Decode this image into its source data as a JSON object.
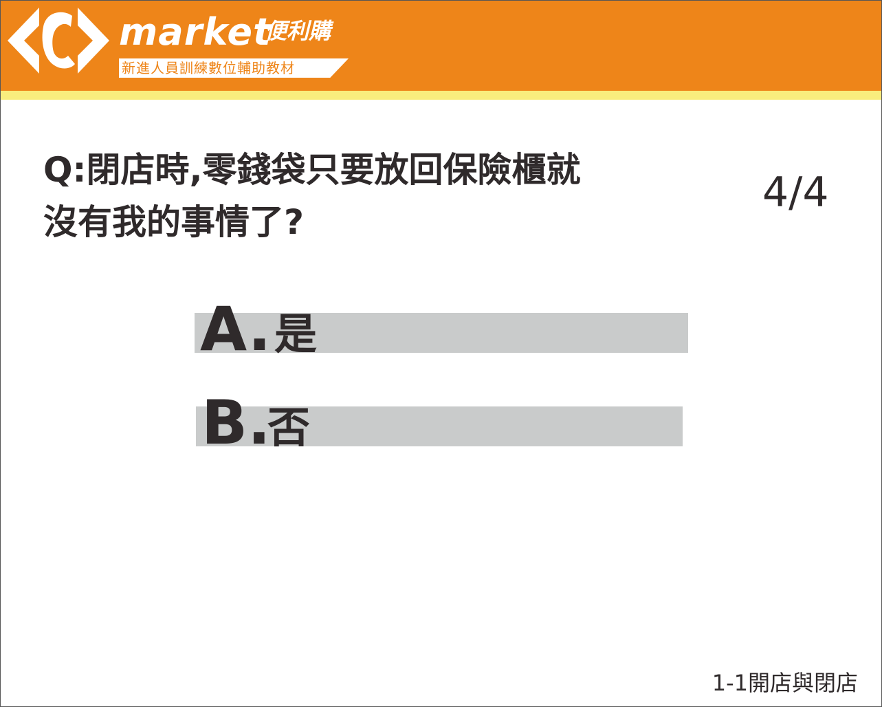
{
  "header": {
    "logo_icon": "carrefour-logo-icon",
    "brand_name": "market",
    "brand_tagline": "便利購",
    "subtitle": "新進人員訓練數位輔助教材",
    "colors": {
      "header_bg": "#ee8519",
      "stripe": "#f9ed7e"
    }
  },
  "quiz": {
    "question_line1": "Q:閉店時,零錢袋只要放回保險櫃就",
    "question_line2": "沒有我的事情了?",
    "progress": "4/4",
    "options": [
      {
        "letter": "A.",
        "text": "是"
      },
      {
        "letter": "B.",
        "text": "否"
      }
    ],
    "option_bar_color": "#c9cbcb"
  },
  "footer": {
    "section_label": "1-1開店與閉店"
  }
}
